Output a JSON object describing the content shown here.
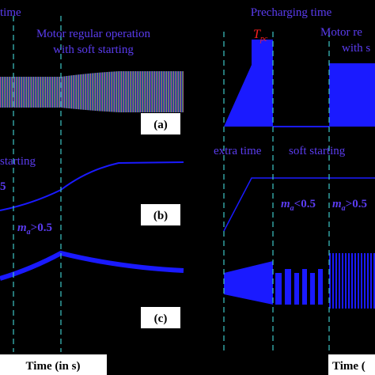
{
  "left": {
    "top_label": "time",
    "annotation": [
      "Motor regular operation",
      "with soft starting"
    ],
    "panel_a": "(a)",
    "soft_label": "starting",
    "lt_label": "5",
    "panel_b": "(b)",
    "ma_label": {
      "main": "m",
      "sub": "a",
      "rest": ">0.5"
    },
    "panel_c": "(c)",
    "x_label": "Time (in s)"
  },
  "right": {
    "top_label": "Precharging time",
    "tpc": {
      "main": "T",
      "sub": "pc"
    },
    "annotation": [
      "Motor re",
      "with s"
    ],
    "extra": "extra time",
    "soft": "soft starting",
    "ma_low": {
      "main": "m",
      "sub": "a",
      "rest": "<0.5"
    },
    "ma_high": {
      "main": "m",
      "sub": "a",
      "rest": ">0.5"
    },
    "x_label": "Time ("
  }
}
